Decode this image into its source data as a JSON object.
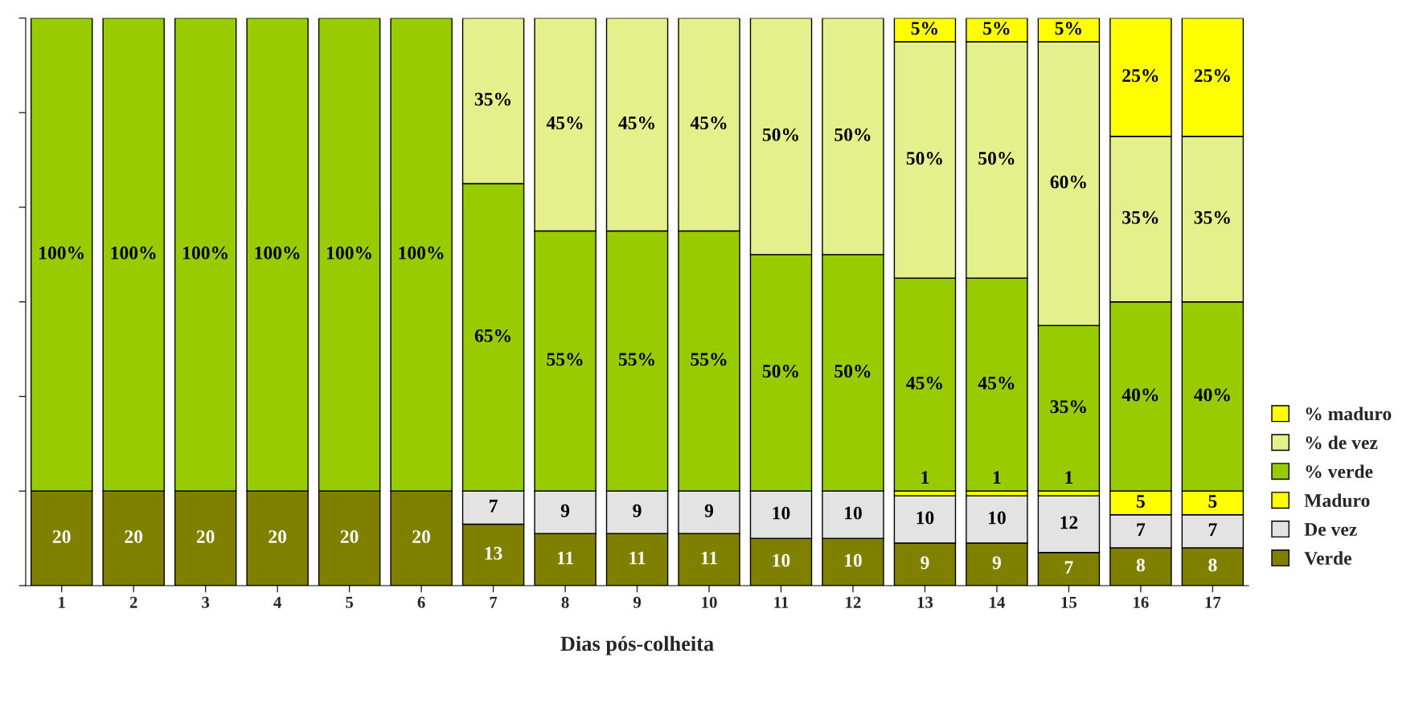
{
  "chart_data": {
    "type": "bar",
    "stacked": true,
    "xlabel": "Dias pós-colheita",
    "categories": [
      "1",
      "2",
      "3",
      "4",
      "5",
      "6",
      "7",
      "8",
      "9",
      "10",
      "11",
      "12",
      "13",
      "14",
      "15",
      "16",
      "17"
    ],
    "ylim": [
      0,
      120
    ],
    "yticks": [
      {
        "value": 0,
        "label": null
      },
      {
        "value": 20,
        "label": null
      },
      {
        "value": 40,
        "label": null
      },
      {
        "value": 60,
        "label": null
      },
      {
        "value": 80,
        "label": null
      },
      {
        "value": 100,
        "label": null
      },
      {
        "value": 120,
        "label": null
      }
    ],
    "tick_labels": "x",
    "grid": false,
    "legend": "right",
    "series": [
      {
        "name": "Verde",
        "color": "#808000",
        "values": [
          20,
          20,
          20,
          20,
          20,
          20,
          13,
          11,
          11,
          11,
          10,
          10,
          9,
          9,
          7,
          8,
          8
        ],
        "value_labels": [
          "20",
          "20",
          "20",
          "20",
          "20",
          "20",
          "13",
          "11",
          "11",
          "11",
          "10",
          "10",
          "9",
          "9",
          "7",
          "8",
          "8"
        ]
      },
      {
        "name": "De vez",
        "color": "#e3e3e3",
        "values": [
          null,
          null,
          null,
          null,
          null,
          null,
          7,
          9,
          9,
          9,
          10,
          10,
          10,
          10,
          12,
          7,
          7
        ],
        "value_labels": [
          null,
          null,
          null,
          null,
          null,
          null,
          "7",
          "9",
          "9",
          "9",
          "10",
          "10",
          "10",
          "10",
          "12",
          "7",
          "7"
        ]
      },
      {
        "name": "Maduro",
        "color": "#ffff00",
        "values": [
          null,
          null,
          null,
          null,
          null,
          null,
          null,
          null,
          null,
          null,
          null,
          null,
          1,
          1,
          1,
          5,
          5
        ],
        "value_labels": [
          null,
          null,
          null,
          null,
          null,
          null,
          null,
          null,
          null,
          null,
          null,
          null,
          "1",
          "1",
          "1",
          "5",
          "5"
        ]
      },
      {
        "name": "% verde",
        "color": "#99cc00",
        "values": [
          100,
          100,
          100,
          100,
          100,
          100,
          65,
          55,
          55,
          55,
          50,
          50,
          45,
          45,
          35,
          40,
          40
        ],
        "value_labels": [
          "100%",
          "100%",
          "100%",
          "100%",
          "100%",
          "100%",
          "65%",
          "55%",
          "55%",
          "55%",
          "50%",
          "50%",
          "45%",
          "45%",
          "35%",
          "40%",
          "40%"
        ]
      },
      {
        "name": "% de vez",
        "color": "#e4f08c",
        "values": [
          null,
          null,
          null,
          null,
          null,
          null,
          35,
          45,
          45,
          45,
          50,
          50,
          50,
          50,
          60,
          35,
          35
        ],
        "value_labels": [
          null,
          null,
          null,
          null,
          null,
          null,
          "35%",
          "45%",
          "45%",
          "45%",
          "50%",
          "50%",
          "50%",
          "50%",
          "60%",
          "35%",
          "35%"
        ]
      },
      {
        "name": "% maduro",
        "color": "#ffff00",
        "values": [
          null,
          null,
          null,
          null,
          null,
          null,
          null,
          null,
          null,
          null,
          null,
          null,
          5,
          5,
          5,
          25,
          25
        ],
        "value_labels": [
          null,
          null,
          null,
          null,
          null,
          null,
          null,
          null,
          null,
          null,
          null,
          null,
          "5%",
          "5%",
          "5%",
          "25%",
          "25%"
        ]
      }
    ]
  }
}
